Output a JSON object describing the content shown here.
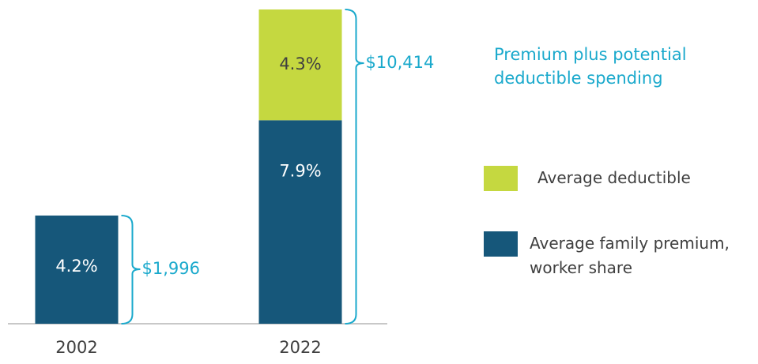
{
  "chart_data": {
    "type": "bar",
    "stacked": true,
    "categories": [
      "2002",
      "2022"
    ],
    "series": [
      {
        "name": "Average family premium, worker share",
        "color": "#16577a",
        "values": [
          4.2,
          7.9
        ],
        "value_labels": [
          "4.2%",
          "7.9%"
        ]
      },
      {
        "name": "Average deductible",
        "color": "#c5d840",
        "values": [
          null,
          4.3
        ],
        "value_labels": [
          null,
          "4.3%"
        ]
      }
    ],
    "totals": [
      {
        "value": 1996,
        "label": "$1,996"
      },
      {
        "value": 10414,
        "label": "$10,414"
      }
    ],
    "annotation": "Premium plus potential deductible spending"
  }
}
